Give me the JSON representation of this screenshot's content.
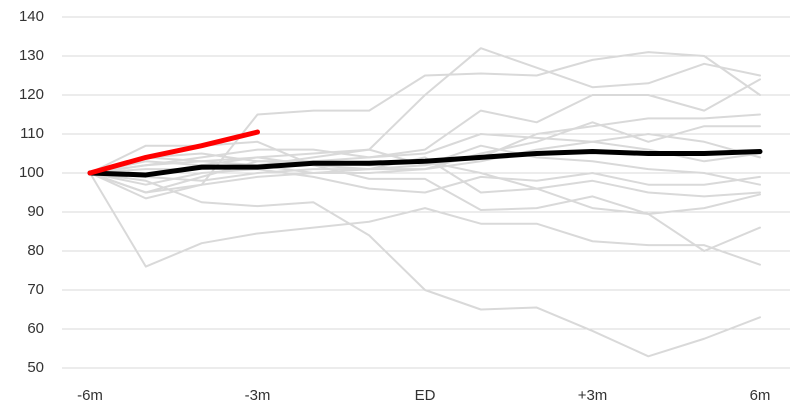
{
  "chart_data": {
    "type": "line",
    "categories": [
      "-6m",
      null,
      null,
      "-3m",
      null,
      null,
      "ED",
      null,
      null,
      "+3m",
      null,
      null,
      "6m"
    ],
    "ylim": [
      50,
      140
    ],
    "yticks": [
      50,
      60,
      70,
      80,
      90,
      100,
      110,
      120,
      130,
      140
    ],
    "grid": true,
    "series": [
      {
        "color": "#d9d9d9",
        "values": [
          100,
          95,
          97,
          115,
          116,
          116,
          125,
          125.5,
          125,
          129,
          131,
          130,
          120
        ]
      },
      {
        "color": "#d9d9d9",
        "values": [
          100,
          76,
          82,
          84.5,
          86,
          87.5,
          91,
          87,
          87,
          82.5,
          81.5,
          81.5,
          76.5
        ]
      },
      {
        "color": "#d9d9d9",
        "values": [
          100,
          98,
          92.5,
          91.5,
          92.5,
          84,
          70,
          65,
          65.5,
          59.5,
          53,
          57.5,
          63
        ]
      },
      {
        "color": "#d9d9d9",
        "values": [
          100,
          103,
          102,
          104,
          105,
          106,
          120,
          132,
          127,
          122,
          123,
          128,
          125
        ]
      },
      {
        "color": "#d9d9d9",
        "values": [
          100,
          107,
          107,
          108,
          102,
          98.5,
          98.5,
          90.5,
          91,
          94,
          89.5,
          91,
          94.5
        ]
      },
      {
        "color": "#d9d9d9",
        "values": [
          100,
          93.5,
          97,
          99,
          100,
          101,
          104,
          95,
          96,
          91,
          89.5,
          80,
          86
        ]
      },
      {
        "color": "#d9d9d9",
        "values": [
          100,
          102,
          104,
          106,
          106,
          104,
          106,
          116,
          113,
          120,
          120,
          116,
          124
        ]
      },
      {
        "color": "#d9d9d9",
        "values": [
          100,
          101,
          101,
          102,
          104,
          106,
          102,
          104,
          110,
          112,
          114,
          114,
          115
        ]
      },
      {
        "color": "#d9d9d9",
        "values": [
          100,
          104,
          105,
          103,
          103,
          104,
          105,
          110,
          109,
          108,
          110,
          108,
          104
        ]
      },
      {
        "color": "#d9d9d9",
        "values": [
          100,
          97,
          100,
          101,
          99,
          96,
          95,
          99,
          98,
          100,
          97,
          97,
          99
        ]
      },
      {
        "color": "#d9d9d9",
        "values": [
          100,
          104,
          103,
          102,
          100,
          100,
          101,
          105,
          108,
          113,
          108,
          112,
          112
        ]
      },
      {
        "color": "#d9d9d9",
        "values": [
          100,
          99,
          98,
          100,
          101,
          101,
          101,
          103,
          106,
          108,
          106,
          103,
          105
        ]
      },
      {
        "color": "#d9d9d9",
        "values": [
          100,
          102,
          103,
          104,
          102,
          101,
          102,
          107,
          104,
          103,
          101,
          100,
          97
        ]
      },
      {
        "color": "#d9d9d9",
        "values": [
          100,
          95,
          99,
          103,
          103,
          102,
          103,
          100,
          96,
          98,
          95,
          94,
          95
        ]
      },
      {
        "color": "#000000",
        "values": [
          100,
          99.5,
          101.5,
          101.5,
          102.5,
          102.5,
          103,
          104,
          105,
          105.5,
          105,
          105,
          105.5
        ]
      },
      {
        "color": "#ff0000",
        "values": [
          100,
          104,
          107,
          110.5,
          null,
          null,
          null,
          null,
          null,
          null,
          null,
          null,
          null
        ]
      }
    ]
  }
}
